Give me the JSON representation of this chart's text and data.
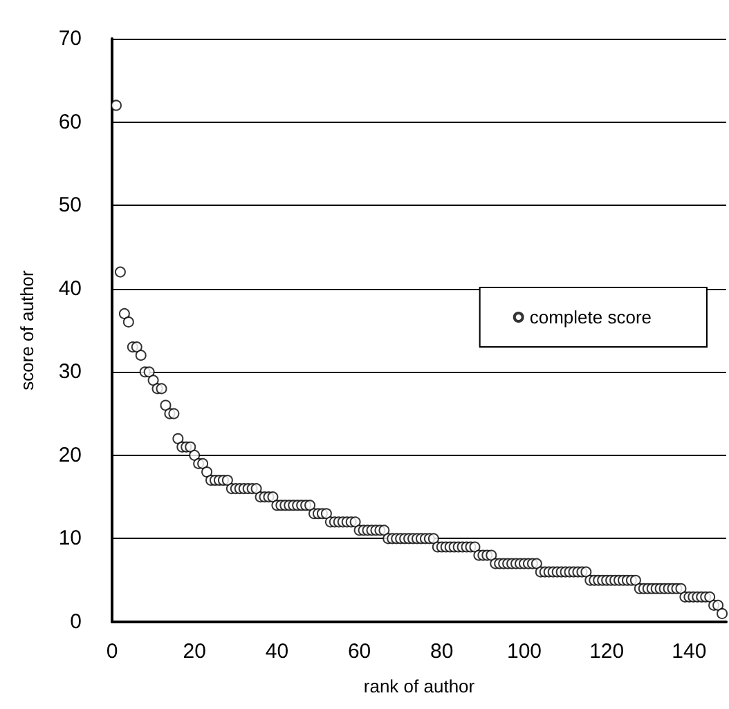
{
  "chart_data": {
    "type": "scatter",
    "xlabel": "rank of author",
    "ylabel": "score of author",
    "x": [
      1,
      2,
      3,
      4,
      5,
      6,
      7,
      8,
      9,
      10,
      11,
      12,
      13,
      14,
      15,
      16,
      17,
      18,
      19,
      20,
      21,
      22,
      23,
      24,
      25,
      26,
      27,
      28,
      29,
      30,
      31,
      32,
      33,
      34,
      35,
      36,
      37,
      38,
      39,
      40,
      41,
      42,
      43,
      44,
      45,
      46,
      47,
      48,
      49,
      50,
      51,
      52,
      53,
      54,
      55,
      56,
      57,
      58,
      59,
      60,
      61,
      62,
      63,
      64,
      65,
      66,
      67,
      68,
      69,
      70,
      71,
      72,
      73,
      74,
      75,
      76,
      77,
      78,
      79,
      80,
      81,
      82,
      83,
      84,
      85,
      86,
      87,
      88,
      89,
      90,
      91,
      92,
      93,
      94,
      95,
      96,
      97,
      98,
      99,
      100,
      101,
      102,
      103,
      104,
      105,
      106,
      107,
      108,
      109,
      110,
      111,
      112,
      113,
      114,
      115,
      116,
      117,
      118,
      119,
      120,
      121,
      122,
      123,
      124,
      125,
      126,
      127,
      128,
      129,
      130,
      131,
      132,
      133,
      134,
      135,
      136,
      137,
      138,
      139,
      140,
      141,
      142,
      143,
      144,
      145,
      146,
      147,
      148
    ],
    "series": [
      {
        "name": "complete score",
        "color": "#000000",
        "values": [
          62,
          42,
          37,
          36,
          33,
          33,
          32,
          30,
          30,
          29,
          28,
          28,
          26,
          25,
          25,
          22,
          21,
          21,
          21,
          20,
          19,
          19,
          18,
          17,
          17,
          17,
          17,
          17,
          16,
          16,
          16,
          16,
          16,
          16,
          16,
          15,
          15,
          15,
          15,
          14,
          14,
          14,
          14,
          14,
          14,
          14,
          14,
          14,
          13,
          13,
          13,
          13,
          12,
          12,
          12,
          12,
          12,
          12,
          12,
          11,
          11,
          11,
          11,
          11,
          11,
          11,
          10,
          10,
          10,
          10,
          10,
          10,
          10,
          10,
          10,
          10,
          10,
          10,
          9,
          9,
          9,
          9,
          9,
          9,
          9,
          9,
          9,
          9,
          8,
          8,
          8,
          8,
          7,
          7,
          7,
          7,
          7,
          7,
          7,
          7,
          7,
          7,
          7,
          6,
          6,
          6,
          6,
          6,
          6,
          6,
          6,
          6,
          6,
          6,
          6,
          5,
          5,
          5,
          5,
          5,
          5,
          5,
          5,
          5,
          5,
          5,
          5,
          4,
          4,
          4,
          4,
          4,
          4,
          4,
          4,
          4,
          4,
          4,
          3,
          3,
          3,
          3,
          3,
          3,
          3,
          2,
          2,
          1
        ]
      }
    ],
    "xlim": [
      0,
      149
    ],
    "xticks": [
      0,
      20,
      40,
      60,
      80,
      100,
      120,
      140
    ],
    "ylim": [
      0,
      70
    ],
    "yticks": [
      0,
      10,
      20,
      30,
      40,
      50,
      60,
      70
    ],
    "grid": "y",
    "legend": "right",
    "marker": "circle"
  }
}
